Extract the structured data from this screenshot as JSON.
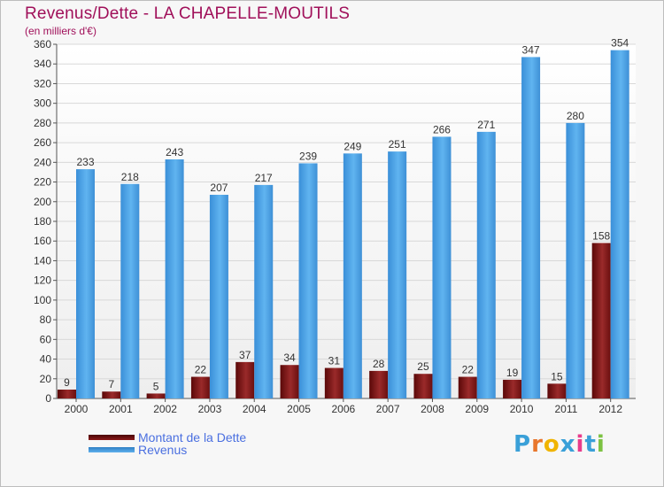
{
  "header": {
    "title": "Revenus/Dette - LA CHAPELLE-MOUTILS",
    "subtitle": "(en milliers d'€)"
  },
  "chart_data": {
    "type": "bar",
    "categories": [
      "2000",
      "2001",
      "2002",
      "2003",
      "2004",
      "2005",
      "2006",
      "2007",
      "2008",
      "2009",
      "2010",
      "2011",
      "2012"
    ],
    "series": [
      {
        "name": "Montant de la Dette",
        "color": "#7a1010",
        "values": [
          9,
          7,
          5,
          22,
          37,
          34,
          31,
          28,
          25,
          22,
          19,
          15,
          158
        ]
      },
      {
        "name": "Revenus",
        "color": "#4da3e6",
        "values": [
          233,
          218,
          243,
          207,
          217,
          239,
          249,
          251,
          266,
          271,
          347,
          280,
          354
        ]
      }
    ],
    "ylim": [
      0,
      360
    ],
    "yticks": [
      0,
      20,
      40,
      60,
      80,
      100,
      120,
      140,
      160,
      180,
      200,
      220,
      240,
      260,
      280,
      300,
      320,
      340,
      360
    ],
    "grid": true,
    "legend_position": "bottom-left"
  },
  "logo": {
    "letters": [
      "P",
      "r",
      "o",
      "x",
      "i",
      "t",
      "i"
    ],
    "colors": [
      "#3aa0d8",
      "#e8762c",
      "#f0b400",
      "#3aa0d8",
      "#e83c8c",
      "#3aa0d8",
      "#7cc242"
    ]
  }
}
